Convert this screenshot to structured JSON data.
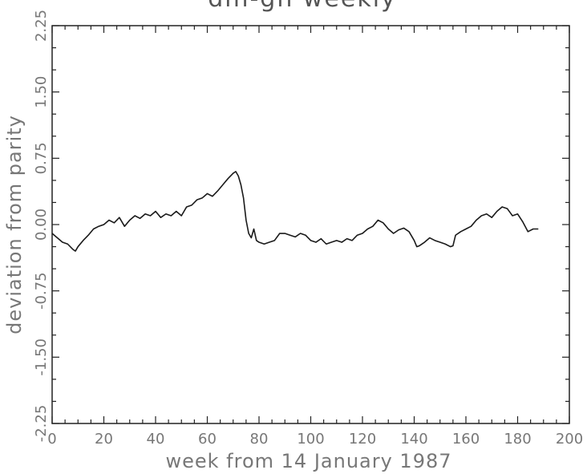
{
  "chart_data": {
    "type": "line",
    "title": "dm-gh weekly",
    "xlabel": "week from 14 January 1987",
    "ylabel": "deviation from parity",
    "xlim": [
      0,
      200
    ],
    "ylim": [
      -2.25,
      2.25
    ],
    "xticks": [
      0,
      20,
      40,
      60,
      80,
      100,
      120,
      140,
      160,
      180,
      200
    ],
    "xtick_labels": [
      "0",
      "20",
      "40",
      "60",
      "80",
      "100",
      "120",
      "140",
      "160",
      "180",
      "200"
    ],
    "yticks": [
      -2.25,
      -1.5,
      -0.75,
      0,
      0.75,
      1.5,
      2.25
    ],
    "ytick_labels": [
      "-2.25",
      "-1.50",
      "-0.75",
      "0.00",
      "0.75",
      "1.50",
      "2.25"
    ],
    "grid": false,
    "series": [
      {
        "x": [
          0,
          2,
          4,
          6,
          8,
          9,
          10,
          12,
          14,
          16,
          18,
          20,
          22,
          24,
          26,
          28,
          30,
          32,
          34,
          36,
          38,
          40,
          42,
          44,
          46,
          48,
          50,
          52,
          54,
          56,
          58,
          60,
          62,
          64,
          66,
          68,
          70,
          71,
          72,
          73,
          74,
          75,
          76,
          77,
          78,
          79,
          80,
          82,
          84,
          86,
          88,
          90,
          92,
          94,
          96,
          98,
          100,
          102,
          104,
          106,
          108,
          110,
          112,
          114,
          116,
          118,
          120,
          122,
          124,
          126,
          128,
          130,
          132,
          134,
          136,
          138,
          140,
          141,
          142,
          144,
          146,
          148,
          150,
          152,
          154,
          155,
          156,
          158,
          160,
          162,
          164,
          166,
          168,
          170,
          172,
          174,
          176,
          178,
          180,
          182,
          184,
          186,
          188
        ],
        "y": [
          -0.1,
          -0.15,
          -0.2,
          -0.22,
          -0.28,
          -0.3,
          -0.25,
          -0.18,
          -0.12,
          -0.05,
          -0.02,
          0.0,
          0.05,
          0.02,
          0.08,
          -0.02,
          0.05,
          0.1,
          0.07,
          0.12,
          0.1,
          0.15,
          0.08,
          0.12,
          0.1,
          0.15,
          0.1,
          0.2,
          0.22,
          0.28,
          0.3,
          0.35,
          0.32,
          0.38,
          0.45,
          0.52,
          0.58,
          0.6,
          0.55,
          0.45,
          0.3,
          0.05,
          -0.1,
          -0.15,
          -0.05,
          -0.18,
          -0.2,
          -0.22,
          -0.2,
          -0.18,
          -0.1,
          -0.1,
          -0.12,
          -0.14,
          -0.1,
          -0.12,
          -0.18,
          -0.2,
          -0.16,
          -0.22,
          -0.2,
          -0.18,
          -0.2,
          -0.16,
          -0.18,
          -0.12,
          -0.1,
          -0.05,
          -0.02,
          0.05,
          0.02,
          -0.05,
          -0.1,
          -0.06,
          -0.04,
          -0.08,
          -0.18,
          -0.25,
          -0.24,
          -0.2,
          -0.15,
          -0.18,
          -0.2,
          -0.22,
          -0.25,
          -0.24,
          -0.12,
          -0.08,
          -0.05,
          -0.02,
          0.05,
          0.1,
          0.12,
          0.08,
          0.15,
          0.2,
          0.18,
          0.1,
          0.12,
          0.03,
          -0.08,
          -0.05,
          -0.05
        ]
      }
    ]
  }
}
